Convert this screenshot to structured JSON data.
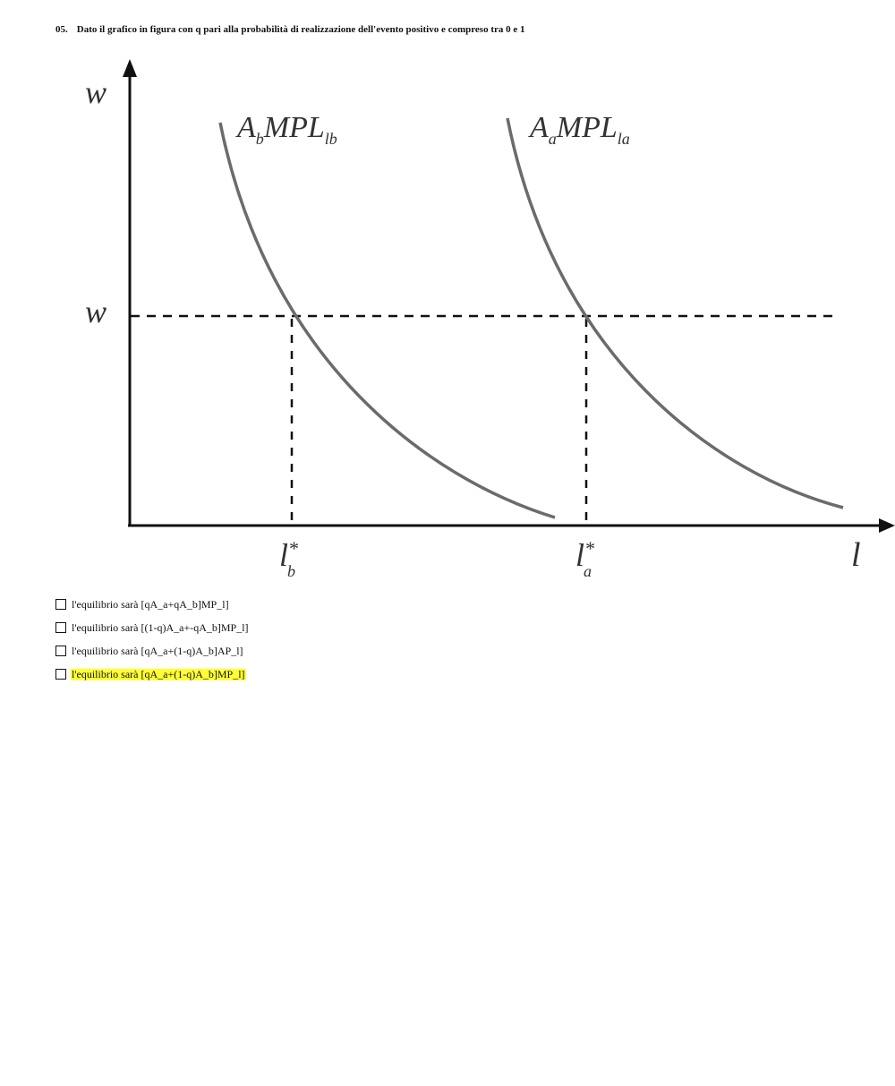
{
  "question": {
    "number": "05.",
    "text": "Dato il grafico in figura con q pari alla probabilità di realizzazione dell'evento positivo e compreso tra 0 e 1"
  },
  "figure": {
    "y_axis_top_label": "w",
    "wage_level_label": "w",
    "x_axis_label": "l",
    "curve_b_label": {
      "prefix": "A",
      "prefix_sub": "b",
      "main": "MPL",
      "sub": "lb"
    },
    "curve_a_label": {
      "prefix": "A",
      "prefix_sub": "a",
      "main": "MPL",
      "sub": "la"
    },
    "tick_b": {
      "main": "l",
      "sup": "*",
      "sub": "b"
    },
    "tick_a": {
      "main": "l",
      "sup": "*",
      "sub": "a"
    }
  },
  "options": [
    {
      "text": "l'equilibrio sarà  [qA_a+qA_b]MP_l]",
      "highlighted": false
    },
    {
      "text": "l'equilibrio sarà [(1-q)A_a+-qA_b]MP_l]",
      "highlighted": false
    },
    {
      "text": "l'equilibrio sarà [qA_a+(1-q)A_b]AP_l]",
      "highlighted": false
    },
    {
      "text": "l'equilibrio sarà [qA_a+(1-q)A_b]MP_l]",
      "highlighted": true
    }
  ],
  "colors": {
    "highlight": "#ffff33",
    "curve": "#6b6b6b",
    "axis": "#111111"
  }
}
